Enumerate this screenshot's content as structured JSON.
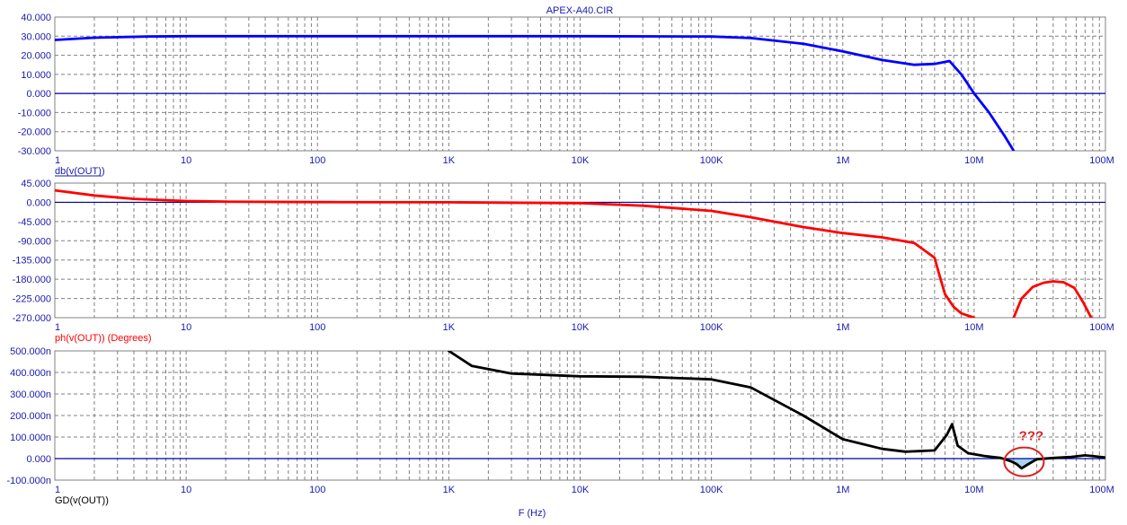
{
  "title": "APEX-A40.CIR",
  "colors": {
    "axis_text": "#1a1ab0",
    "grid": "#808080",
    "zero_line": "#0000a0",
    "gain": "#0000ff",
    "phase": "#ff0000",
    "group_delay": "#000000",
    "annotation": "#e02020",
    "highlight_fill": "#a8d4f0"
  },
  "chart_data": [
    {
      "type": "line",
      "xlabel": "",
      "ylabel": "db(v(OUT))",
      "x_scale": "log",
      "xlim": [
        1,
        100000000
      ],
      "ylim": [
        -30,
        40
      ],
      "x_ticks": [
        "1",
        "10",
        "100",
        "1K",
        "10K",
        "100K",
        "1M",
        "10M",
        "100M"
      ],
      "y_ticks": [
        "40.000",
        "30.000",
        "20.000",
        "10.000",
        "0.000",
        "-10.000",
        "-20.000",
        "-30.000"
      ],
      "grid": true,
      "series": [
        {
          "name": "db(v(OUT))",
          "x": [
            1,
            2,
            5,
            10,
            100,
            1000,
            10000,
            100000,
            200000,
            500000,
            1000000,
            2000000,
            3500000,
            5000000,
            6500000,
            8000000,
            10000000,
            13000000,
            17000000,
            20000000
          ],
          "y": [
            28,
            29.2,
            29.8,
            30,
            30,
            30,
            30,
            29.8,
            29,
            26,
            22,
            17.5,
            15,
            15.5,
            17,
            10,
            0,
            -10,
            -22,
            -30
          ]
        }
      ]
    },
    {
      "type": "line",
      "xlabel": "",
      "ylabel": "ph(v(OUT)) (Degrees)",
      "x_scale": "log",
      "xlim": [
        1,
        100000000
      ],
      "ylim": [
        -270,
        45
      ],
      "x_ticks": [
        "1",
        "10",
        "100",
        "1K",
        "10K",
        "100K",
        "1M",
        "10M",
        "100M"
      ],
      "y_ticks": [
        "45.000",
        "0.000",
        "-45.000",
        "-90.000",
        "-135.000",
        "-180.000",
        "-225.000",
        "-270.000"
      ],
      "grid": true,
      "series": [
        {
          "name": "ph(v(OUT)) (Degrees)",
          "x": [
            1,
            2,
            4,
            10,
            20,
            100,
            1000,
            10000,
            30000,
            100000,
            200000,
            500000,
            1000000,
            2000000,
            3500000,
            5000000,
            5500000,
            6000000,
            7000000,
            8000000,
            10000000
          ],
          "y": [
            28,
            16,
            8,
            3,
            1.5,
            0.5,
            0,
            -2,
            -8,
            -20,
            -35,
            -58,
            -72,
            -82,
            -95,
            -130,
            -175,
            -215,
            -245,
            -260,
            -270
          ]
        },
        {
          "name": "",
          "x": [
            20000000,
            23000000,
            28000000,
            34000000,
            40000000,
            48000000,
            58000000,
            68000000,
            78000000
          ],
          "y": [
            -270,
            -225,
            -198,
            -188,
            -185,
            -187,
            -200,
            -235,
            -270
          ]
        }
      ]
    },
    {
      "type": "line",
      "xlabel": "F (Hz)",
      "ylabel": "GD(v(OUT))",
      "x_scale": "log",
      "xlim": [
        1,
        100000000
      ],
      "ylim": [
        -100,
        500
      ],
      "x_ticks": [
        "1",
        "10",
        "100",
        "1K",
        "10K",
        "100K",
        "1M",
        "10M",
        "100M"
      ],
      "y_ticks": [
        "500.000n",
        "400.000n",
        "300.000n",
        "200.000n",
        "100.000n",
        "0.000",
        "-100.000n"
      ],
      "grid": true,
      "annotation": "???",
      "series": [
        {
          "name": "GD(v(OUT))",
          "x": [
            1000,
            1500,
            3000,
            10000,
            30000,
            100000,
            200000,
            500000,
            1000000,
            2000000,
            3000000,
            5000000,
            6200000,
            6800000,
            7500000,
            9000000,
            12000000,
            16000000,
            19000000,
            21000000,
            23000000,
            26000000,
            30000000,
            40000000,
            55000000,
            70000000,
            85000000,
            100000000
          ],
          "y": [
            500,
            430,
            395,
            382,
            380,
            368,
            330,
            200,
            90,
            45,
            32,
            38,
            110,
            160,
            60,
            25,
            12,
            3,
            -12,
            -25,
            -45,
            -25,
            -3,
            3,
            8,
            15,
            10,
            5
          ]
        }
      ]
    }
  ]
}
